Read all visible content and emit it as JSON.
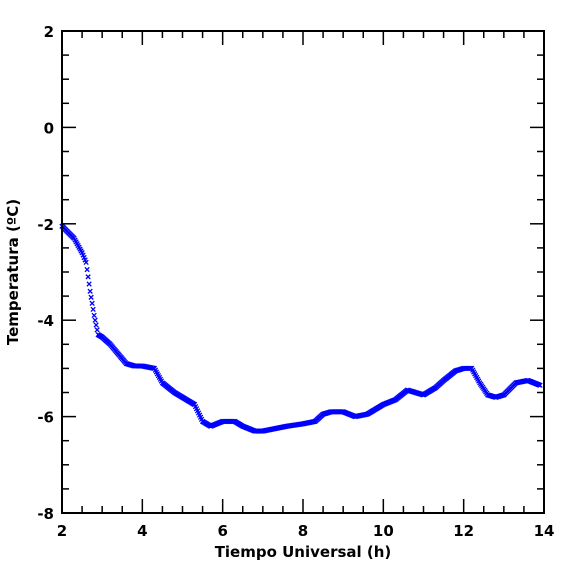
{
  "chart_data": {
    "type": "scatter",
    "title": "",
    "xlabel": "Tiempo Universal (h)",
    "ylabel": "Temperatura (ºC)",
    "xlim": [
      2,
      14
    ],
    "ylim": [
      -8,
      2
    ],
    "xticks": [
      "2",
      "4",
      "6",
      "8",
      "10",
      "12",
      "14"
    ],
    "yticks": [
      "-8",
      "-6",
      "-4",
      "-2",
      "0",
      "2"
    ],
    "grid": false,
    "marker": "x",
    "marker_color": "#0000ff",
    "axis_color": "#000000",
    "series": [
      {
        "x": [
          2.0,
          2.3,
          2.5,
          2.6,
          2.7,
          2.8,
          2.9,
          3.0,
          3.2,
          3.4,
          3.6,
          3.8,
          4.0,
          4.3,
          4.5,
          4.8,
          5.0,
          5.3,
          5.5,
          5.7,
          6.0,
          6.3,
          6.5,
          6.8,
          7.0,
          7.3,
          7.6,
          8.0,
          8.3,
          8.5,
          8.7,
          9.0,
          9.3,
          9.6,
          9.8,
          10.0,
          10.3,
          10.6,
          10.8,
          11.0,
          11.3,
          11.5,
          11.8,
          12.0,
          12.2,
          12.4,
          12.6,
          12.8,
          13.0,
          13.3,
          13.6,
          13.9
        ],
        "y": [
          -2.05,
          -2.3,
          -2.6,
          -2.8,
          -3.4,
          -3.9,
          -4.3,
          -4.35,
          -4.5,
          -4.7,
          -4.9,
          -4.95,
          -4.95,
          -5.0,
          -5.3,
          -5.5,
          -5.6,
          -5.75,
          -6.1,
          -6.2,
          -6.1,
          -6.1,
          -6.2,
          -6.3,
          -6.3,
          -6.25,
          -6.2,
          -6.15,
          -6.1,
          -5.95,
          -5.9,
          -5.9,
          -6.0,
          -5.95,
          -5.85,
          -5.75,
          -5.65,
          -5.45,
          -5.5,
          -5.55,
          -5.4,
          -5.25,
          -5.05,
          -5.0,
          -5.0,
          -5.3,
          -5.55,
          -5.6,
          -5.55,
          -5.3,
          -5.25,
          -5.35
        ]
      }
    ]
  }
}
